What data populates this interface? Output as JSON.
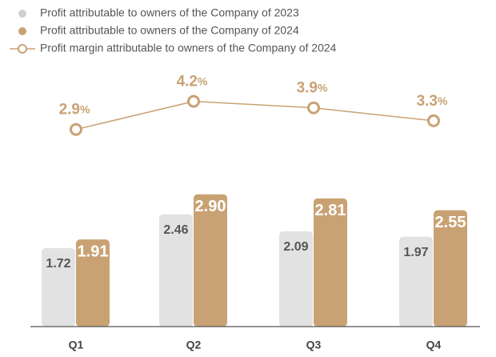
{
  "chart_data": {
    "type": "bar",
    "categories": [
      "Q1",
      "Q2",
      "Q3",
      "Q4"
    ],
    "series": [
      {
        "name": "Profit attributable to owners of the Company of 2023",
        "color": "#e2e2e2",
        "values": [
          1.72,
          2.46,
          2.09,
          1.97
        ]
      },
      {
        "name": "Profit attributable to owners of the Company of 2024",
        "color": "#c9a274",
        "values": [
          1.91,
          2.9,
          2.81,
          2.55
        ],
        "value_labels": [
          "1.91",
          "2.90",
          "2.81",
          "2.55"
        ]
      },
      {
        "name": "Profit margin attributable to owners of the Company of 2024",
        "type": "line",
        "axis": "y2",
        "color": "#c9a274",
        "values": [
          2.9,
          4.2,
          3.9,
          3.3
        ],
        "value_suffix": "%"
      }
    ],
    "ylim": [
      0,
      4
    ],
    "y2lim": [
      0,
      6
    ]
  }
}
